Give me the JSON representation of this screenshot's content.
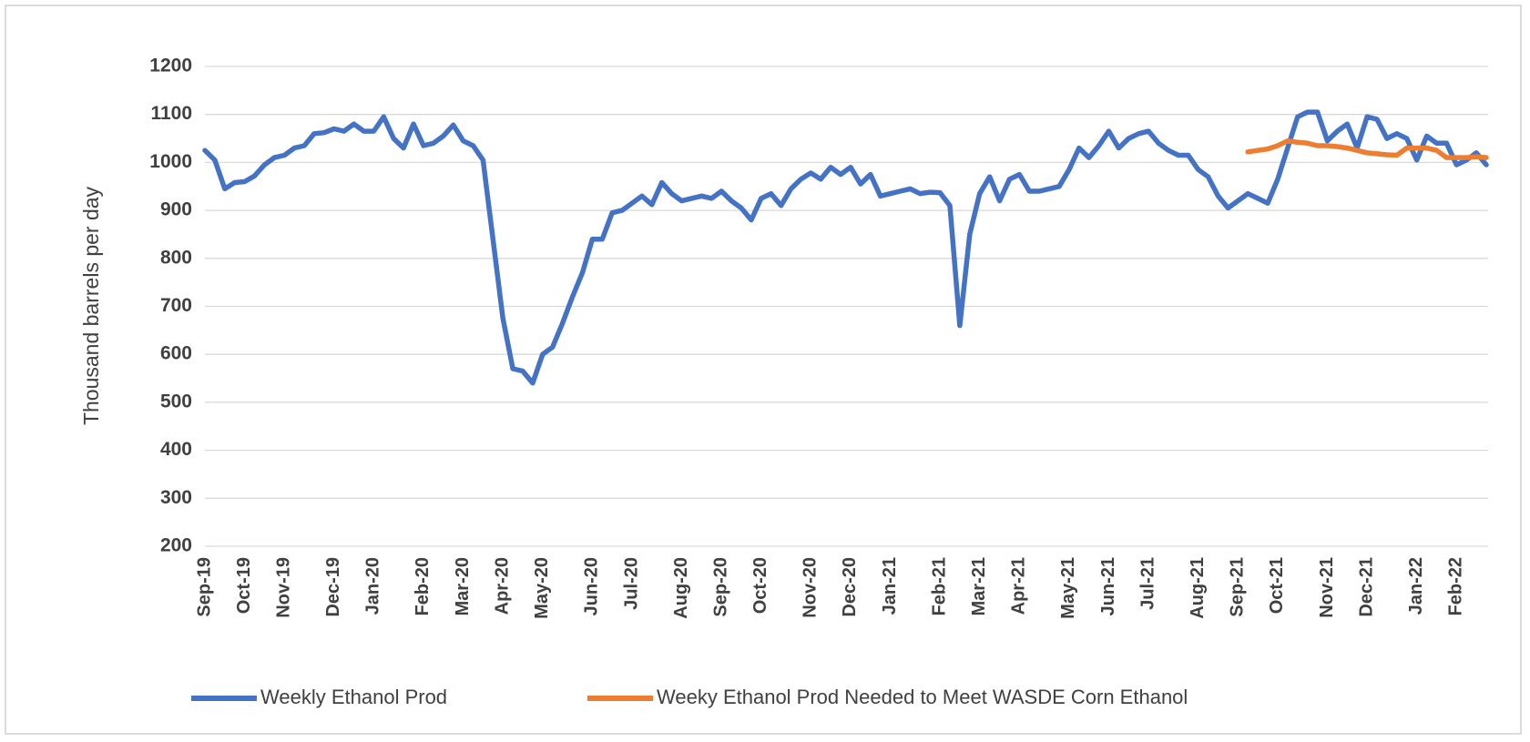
{
  "chart_data": {
    "type": "line",
    "y_label": "Thousand barrels per day",
    "categories": [
      "Sep-19",
      null,
      null,
      null,
      "Oct-19",
      null,
      null,
      null,
      "Nov-19",
      null,
      null,
      null,
      null,
      "Dec-19",
      null,
      null,
      null,
      "Jan-20",
      null,
      null,
      null,
      null,
      "Feb-20",
      null,
      null,
      null,
      "Mar-20",
      null,
      null,
      null,
      "Apr-20",
      null,
      null,
      null,
      "May-20",
      null,
      null,
      null,
      null,
      "Jun-20",
      null,
      null,
      null,
      "Jul-20",
      null,
      null,
      null,
      null,
      "Aug-20",
      null,
      null,
      null,
      "Sep-20",
      null,
      null,
      null,
      "Oct-20",
      null,
      null,
      null,
      null,
      "Nov-20",
      null,
      null,
      null,
      "Dec-20",
      null,
      null,
      null,
      "Jan-21",
      null,
      null,
      null,
      null,
      "Feb-21",
      null,
      null,
      null,
      "Mar-21",
      null,
      null,
      null,
      "Apr-21",
      null,
      null,
      null,
      null,
      "May-21",
      null,
      null,
      null,
      "Jun-21",
      null,
      null,
      null,
      "Jul-21",
      null,
      null,
      null,
      null,
      "Aug-21",
      null,
      null,
      null,
      "Sep-21",
      null,
      null,
      null,
      "Oct-21",
      null,
      null,
      null,
      null,
      "Nov-21",
      null,
      null,
      null,
      "Dec-21",
      null,
      null,
      null,
      null,
      "Jan-22",
      null,
      null,
      null,
      "Feb-22",
      null,
      null,
      null
    ],
    "series": [
      {
        "name": "Weekly Ethanol Prod",
        "color": "#4472c4",
        "values": [
          1025,
          1005,
          945,
          958,
          960,
          972,
          995,
          1010,
          1015,
          1030,
          1035,
          1060,
          1062,
          1070,
          1065,
          1080,
          1065,
          1065,
          1095,
          1050,
          1030,
          1080,
          1035,
          1040,
          1055,
          1078,
          1045,
          1035,
          1005,
          840,
          675,
          570,
          565,
          540,
          600,
          615,
          665,
          720,
          770,
          840,
          840,
          895,
          900,
          915,
          930,
          912,
          958,
          935,
          920,
          925,
          930,
          925,
          940,
          920,
          905,
          880,
          925,
          935,
          910,
          945,
          965,
          978,
          965,
          990,
          975,
          990,
          955,
          975,
          930,
          935,
          940,
          945,
          935,
          938,
          937,
          910,
          660,
          850,
          935,
          970,
          920,
          965,
          975,
          940,
          940,
          945,
          950,
          985,
          1030,
          1010,
          1035,
          1065,
          1030,
          1050,
          1060,
          1065,
          1040,
          1025,
          1015,
          1015,
          985,
          970,
          930,
          905,
          920,
          935,
          925,
          915,
          965,
          1030,
          1095,
          1105,
          1105,
          1045,
          1065,
          1080,
          1030,
          1095,
          1090,
          1050,
          1060,
          1050,
          1005,
          1055,
          1040,
          1040,
          995,
          1005,
          1020,
          995
        ]
      },
      {
        "name": "Weeky Ethanol Prod Needed to Meet WASDE Corn Ethanol",
        "color": "#ed7d31",
        "values": [
          null,
          null,
          null,
          null,
          null,
          null,
          null,
          null,
          null,
          null,
          null,
          null,
          null,
          null,
          null,
          null,
          null,
          null,
          null,
          null,
          null,
          null,
          null,
          null,
          null,
          null,
          null,
          null,
          null,
          null,
          null,
          null,
          null,
          null,
          null,
          null,
          null,
          null,
          null,
          null,
          null,
          null,
          null,
          null,
          null,
          null,
          null,
          null,
          null,
          null,
          null,
          null,
          null,
          null,
          null,
          null,
          null,
          null,
          null,
          null,
          null,
          null,
          null,
          null,
          null,
          null,
          null,
          null,
          null,
          null,
          null,
          null,
          null,
          null,
          null,
          null,
          null,
          null,
          null,
          null,
          null,
          null,
          null,
          null,
          null,
          null,
          null,
          null,
          null,
          null,
          null,
          null,
          null,
          null,
          null,
          null,
          null,
          null,
          null,
          null,
          null,
          null,
          null,
          null,
          null,
          1022,
          1025,
          1028,
          1035,
          1045,
          1042,
          1040,
          1035,
          1035,
          1033,
          1030,
          1025,
          1020,
          1018,
          1016,
          1015,
          1030,
          1030,
          1030,
          1025,
          1010,
          1010,
          1010,
          1012,
          1010
        ]
      }
    ],
    "ylim": [
      200,
      1200
    ],
    "yticks": [
      200,
      300,
      400,
      500,
      600,
      700,
      800,
      900,
      1000,
      1100,
      1200
    ],
    "grid": true,
    "legend": "bottom"
  }
}
